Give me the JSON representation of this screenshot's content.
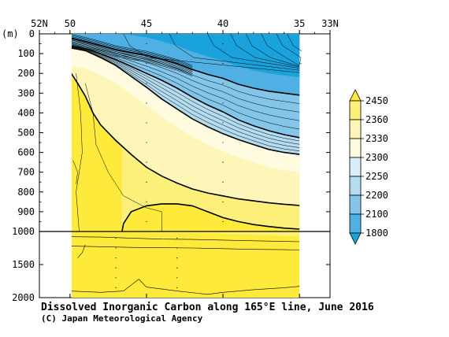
{
  "chart_data": {
    "type": "contour",
    "title": "Dissolved Inorganic Carbon along 165°E line, June 2016",
    "credit": "(C) Japan Meteorological Agency",
    "x_axis": {
      "range": [
        52,
        33
      ],
      "ticks": [
        {
          "value": 52,
          "label": "52N"
        },
        {
          "value": 50,
          "label": "50"
        },
        {
          "value": 45,
          "label": "45"
        },
        {
          "value": 40,
          "label": "40"
        },
        {
          "value": 35,
          "label": "35"
        },
        {
          "value": 33,
          "label": "33N"
        }
      ],
      "data_range": [
        50,
        35
      ]
    },
    "y_axis": {
      "unit": "(m)",
      "upper_range": [
        0,
        1000
      ],
      "lower_range": [
        1000,
        2000
      ],
      "upper_ticks": [
        {
          "value": 0,
          "label": "0"
        },
        {
          "value": 100,
          "label": "100"
        },
        {
          "value": 200,
          "label": "200"
        },
        {
          "value": 300,
          "label": "300"
        },
        {
          "value": 400,
          "label": "400"
        },
        {
          "value": 500,
          "label": "500"
        },
        {
          "value": 600,
          "label": "600"
        },
        {
          "value": 700,
          "label": "700"
        },
        {
          "value": 800,
          "label": "800"
        },
        {
          "value": 900,
          "label": "900"
        },
        {
          "value": 1000,
          "label": "1000"
        }
      ],
      "lower_ticks": [
        {
          "value": 1500,
          "label": "1500"
        },
        {
          "value": 2000,
          "label": "2000"
        }
      ]
    },
    "colorbar": {
      "levels": [
        "2450",
        "2360",
        "2330",
        "2300",
        "2250",
        "2200",
        "2100",
        "1800"
      ],
      "colors": [
        "#fdea3a",
        "#fdf07a",
        "#fdf6b8",
        "#fefbe0",
        "#d8eef8",
        "#b4dcf0",
        "#84c6ea",
        "#50b0e4",
        "#1aa2dc"
      ]
    },
    "bold_contours": [
      {
        "level": 2100,
        "points": [
          [
            50,
            20
          ],
          [
            49,
            38
          ],
          [
            48,
            58
          ],
          [
            47,
            80
          ],
          [
            46,
            95
          ],
          [
            45,
            108
          ],
          [
            44,
            128
          ],
          [
            43,
            150
          ],
          [
            42,
            180
          ],
          [
            41,
            205
          ],
          [
            40,
            225
          ],
          [
            39,
            255
          ],
          [
            38,
            275
          ],
          [
            37,
            290
          ],
          [
            36,
            300
          ],
          [
            35,
            310
          ]
        ]
      },
      {
        "level": 2200,
        "points": [
          [
            50,
            60
          ],
          [
            49,
            75
          ],
          [
            48,
            100
          ],
          [
            47,
            130
          ],
          [
            46,
            165
          ],
          [
            45,
            200
          ],
          [
            44,
            235
          ],
          [
            43,
            275
          ],
          [
            42,
            320
          ],
          [
            41,
            360
          ],
          [
            40,
            395
          ],
          [
            39,
            435
          ],
          [
            38,
            465
          ],
          [
            37,
            490
          ],
          [
            36,
            510
          ],
          [
            35,
            525
          ]
        ]
      },
      {
        "level": 2300,
        "points": [
          [
            50,
            70
          ],
          [
            49,
            85
          ],
          [
            48,
            120
          ],
          [
            47,
            160
          ],
          [
            46,
            215
          ],
          [
            45,
            270
          ],
          [
            44,
            330
          ],
          [
            43,
            380
          ],
          [
            42,
            430
          ],
          [
            41,
            470
          ],
          [
            40,
            505
          ],
          [
            39,
            535
          ],
          [
            38,
            560
          ],
          [
            37,
            585
          ],
          [
            36,
            600
          ],
          [
            35,
            610
          ]
        ]
      },
      {
        "level": 2330,
        "points": [
          [
            50,
            190
          ],
          [
            49.5,
            250
          ],
          [
            49,
            315
          ],
          [
            48.5,
            400
          ],
          [
            48,
            460
          ],
          [
            47,
            540
          ],
          [
            46,
            610
          ],
          [
            45,
            675
          ],
          [
            44,
            720
          ],
          [
            43,
            755
          ],
          [
            42,
            785
          ],
          [
            41,
            805
          ],
          [
            40,
            820
          ],
          [
            39,
            835
          ],
          [
            38,
            845
          ],
          [
            37,
            855
          ],
          [
            36,
            862
          ],
          [
            35,
            868
          ]
        ]
      },
      {
        "level": 2360,
        "points": [
          [
            46.6,
            1000
          ],
          [
            46.5,
            960
          ],
          [
            46,
            900
          ],
          [
            45,
            870
          ],
          [
            44,
            860
          ],
          [
            43,
            860
          ],
          [
            42,
            870
          ],
          [
            41,
            900
          ],
          [
            40,
            930
          ],
          [
            39,
            950
          ],
          [
            38,
            965
          ],
          [
            37,
            975
          ],
          [
            36,
            983
          ],
          [
            35,
            988
          ]
        ]
      }
    ],
    "surface_outcrop_lat": [
      46.5,
      43.5,
      41,
      39.5,
      38.5,
      37.5,
      36.5,
      35.8
    ],
    "deep_contours": [
      {
        "points": [
          [
            50,
            1080
          ],
          [
            48,
            1085
          ],
          [
            46,
            1100
          ],
          [
            44,
            1115
          ],
          [
            42,
            1120
          ],
          [
            40,
            1130
          ],
          [
            38,
            1140
          ],
          [
            36,
            1150
          ],
          [
            35,
            1155
          ]
        ]
      },
      {
        "points": [
          [
            50,
            1220
          ],
          [
            48,
            1230
          ],
          [
            46,
            1240
          ],
          [
            44,
            1245
          ],
          [
            42,
            1250
          ],
          [
            40,
            1260
          ],
          [
            38,
            1270
          ],
          [
            36,
            1275
          ],
          [
            35,
            1280
          ]
        ]
      },
      {
        "points": [
          [
            49.5,
            1400
          ],
          [
            49.2,
            1320
          ],
          [
            49,
            1200
          ]
        ]
      },
      {
        "points": [
          [
            50,
            1900
          ],
          [
            48,
            1920
          ],
          [
            46.5,
            1900
          ],
          [
            45.5,
            1720
          ],
          [
            45,
            1840
          ],
          [
            43,
            1900
          ],
          [
            41,
            1950
          ],
          [
            40,
            1920
          ],
          [
            38,
            1880
          ],
          [
            36,
            1850
          ],
          [
            35,
            1830
          ]
        ]
      }
    ]
  }
}
